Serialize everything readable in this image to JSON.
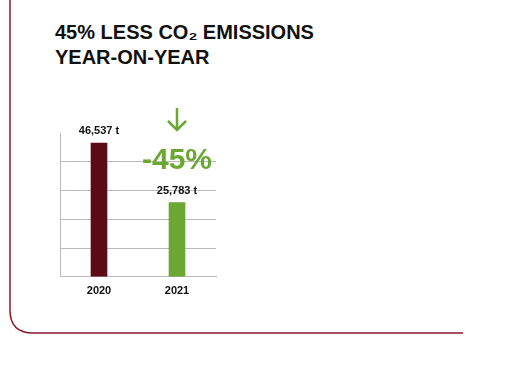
{
  "chart_data": {
    "type": "bar",
    "title": [
      "45% LESS CO₂ EMISSIONS",
      "YEAR-ON-YEAR"
    ],
    "annotation": "-45%",
    "categories": [
      "2020",
      "2021"
    ],
    "values": [
      46537,
      25783
    ],
    "value_labels": [
      "46,537 t",
      "25,783 t"
    ],
    "data_labels": true,
    "colors": [
      "#5c0a16",
      "#6aa832"
    ],
    "ylim": [
      0,
      50000
    ],
    "yticks": [
      0,
      10000,
      20000,
      30000,
      40000
    ],
    "grid": true,
    "tick_labels": "x"
  }
}
